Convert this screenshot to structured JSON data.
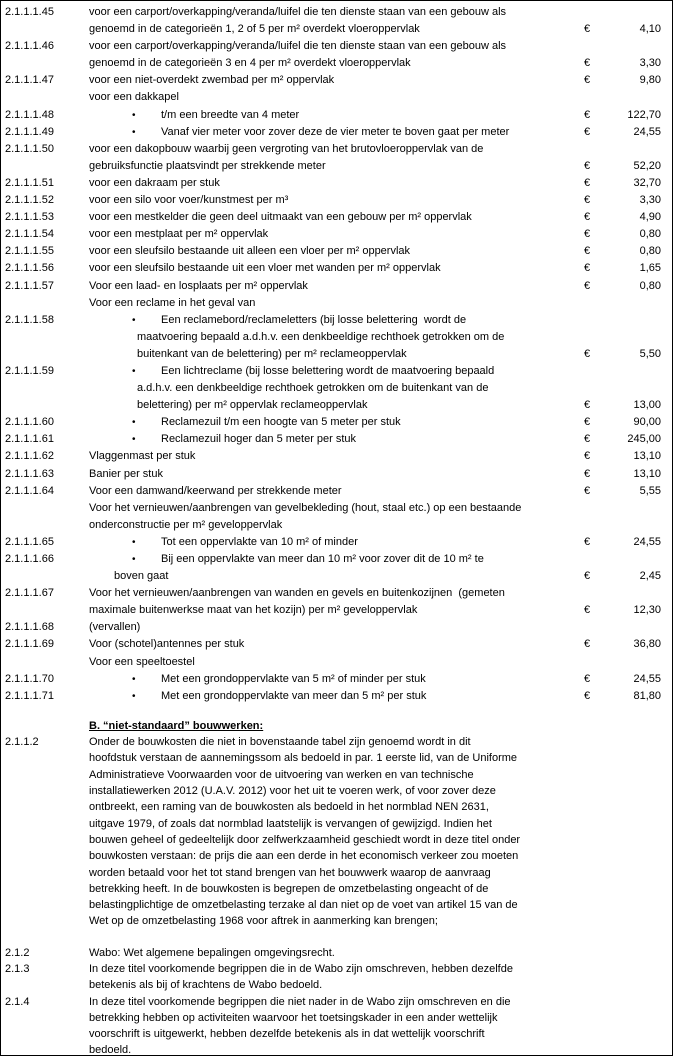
{
  "currency_symbol": "€",
  "heading_b": "B. “niet-standaard” bouwwerken:",
  "document": {
    "sections": [
      {
        "type": "rows",
        "id": "tariff-table",
        "rows": [
          {
            "code": "2.1.1.1.45",
            "amount": "4,10",
            "lines": [
              {
                "i": "d",
                "t": "voor een carport/overkapping/veranda/luifel die ten dienste staan van een gebouw als"
              },
              {
                "i": "d",
                "t": "genoemd in de categorieën 1, 2 of 5 per m² overdekt vloeroppervlak"
              }
            ]
          },
          {
            "code": "2.1.1.1.46",
            "amount": "3,30",
            "lines": [
              {
                "i": "d",
                "t": "voor een carport/overkapping/veranda/luifel die ten dienste staan van een gebouw als"
              },
              {
                "i": "d",
                "t": "genoemd in de categorieën 3 en 4 per m² overdekt vloeroppervlak"
              }
            ]
          },
          {
            "code": "2.1.1.1.47",
            "amount": "9,80",
            "lines": [
              {
                "i": "d",
                "t": "voor een niet-overdekt zwembad per m² oppervlak"
              }
            ]
          },
          {
            "code": "",
            "amount": null,
            "lines": [
              {
                "i": "d",
                "t": "voor een dakkapel"
              }
            ]
          },
          {
            "code": "2.1.1.1.48",
            "amount": "122,70",
            "lines": [
              {
                "i": "b",
                "t": "t/m een breedte van 4 meter"
              }
            ]
          },
          {
            "code": "2.1.1.1.49",
            "amount": "24,55",
            "lines": [
              {
                "i": "b",
                "t": "Vanaf vier meter voor zover deze de vier meter te boven gaat per meter"
              }
            ]
          },
          {
            "code": "2.1.1.1.50",
            "amount": "52,20",
            "lines": [
              {
                "i": "d",
                "t": "voor een dakopbouw waarbij geen vergroting van het brutovloeroppervlak van de"
              },
              {
                "i": "d",
                "t": "gebruiksfunctie plaatsvindt per strekkende meter"
              }
            ]
          },
          {
            "code": "2.1.1.1.51",
            "amount": "32,70",
            "lines": [
              {
                "i": "d",
                "t": "voor een dakraam per stuk"
              }
            ]
          },
          {
            "code": "2.1.1.1.52",
            "amount": "3,30",
            "lines": [
              {
                "i": "d",
                "t": "voor een silo voor voer/kunstmest per m³"
              }
            ]
          },
          {
            "code": "2.1.1.1.53",
            "amount": "4,90",
            "lines": [
              {
                "i": "d",
                "t": "voor een mestkelder die geen deel uitmaakt van een gebouw per m² oppervlak"
              }
            ]
          },
          {
            "code": "2.1.1.1.54",
            "amount": "0,80",
            "lines": [
              {
                "i": "d",
                "t": "voor een mestplaat per m² oppervlak"
              }
            ]
          },
          {
            "code": "2.1.1.1.55",
            "amount": "0,80",
            "lines": [
              {
                "i": "d",
                "t": "voor een sleufsilo bestaande uit alleen een vloer per m² oppervlak"
              }
            ]
          },
          {
            "code": "2.1.1.1.56",
            "amount": "1,65",
            "lines": [
              {
                "i": "d",
                "t": "voor een sleufsilo bestaande uit een vloer met wanden per m² oppervlak"
              }
            ]
          },
          {
            "code": "2.1.1.1.57",
            "amount": "0,80",
            "lines": [
              {
                "i": "d",
                "t": "Voor een laad- en losplaats per m² oppervlak"
              }
            ]
          },
          {
            "code": "",
            "amount": null,
            "lines": [
              {
                "i": "d",
                "t": "Voor een reclame in het geval van"
              }
            ]
          },
          {
            "code": "2.1.1.1.58",
            "amount": "5,50",
            "lines": [
              {
                "i": "b",
                "t": "Een reclamebord/reclameletters (bij losse belettering  wordt de"
              },
              {
                "i": "c",
                "t": "maatvoering bepaald a.d.h.v. een denkbeeldige rechthoek getrokken om de"
              },
              {
                "i": "c",
                "t": "buitenkant van de belettering) per m² reclameoppervlak"
              }
            ]
          },
          {
            "code": "2.1.1.1.59",
            "amount": "13,00",
            "lines": [
              {
                "i": "b",
                "t": "Een lichtreclame (bij losse belettering wordt de maatvoering bepaald"
              },
              {
                "i": "c",
                "t": "a.d.h.v. een denkbeeldige rechthoek getrokken om de buitenkant van de"
              },
              {
                "i": "c",
                "t": "belettering) per m² oppervlak reclameoppervlak"
              }
            ]
          },
          {
            "code": "2.1.1.1.60",
            "amount": "90,00",
            "lines": [
              {
                "i": "b",
                "t": "Reclamezuil t/m een hoogte van 5 meter per stuk"
              }
            ]
          },
          {
            "code": "2.1.1.1.61",
            "amount": "245,00",
            "lines": [
              {
                "i": "b",
                "t": "Reclamezuil hoger dan 5 meter per stuk"
              }
            ]
          },
          {
            "code": "2.1.1.1.62",
            "amount": "13,10",
            "lines": [
              {
                "i": "d",
                "t": "Vlaggenmast per stuk"
              }
            ]
          },
          {
            "code": "2.1.1.1.63",
            "amount": "13,10",
            "lines": [
              {
                "i": "d",
                "t": "Banier per stuk"
              }
            ]
          },
          {
            "code": "2.1.1.1.64",
            "amount": "5,55",
            "lines": [
              {
                "i": "d",
                "t": "Voor een damwand/keerwand per strekkende meter"
              }
            ]
          },
          {
            "code": "",
            "amount": null,
            "lines": [
              {
                "i": "d",
                "t": "Voor het vernieuwen/aanbrengen van gevelbekleding (hout, staal etc.) op een bestaande"
              },
              {
                "i": "d",
                "t": "onderconstructie per m² geveloppervlak"
              }
            ]
          },
          {
            "code": "2.1.1.1.65",
            "amount": "24,55",
            "lines": [
              {
                "i": "b",
                "t": "Tot een oppervlakte van 10 m² of minder"
              }
            ]
          },
          {
            "code": "2.1.1.1.66",
            "amount": "2,45",
            "lines": [
              {
                "i": "b",
                "t": "Bij een oppervlakte van meer dan 10 m² voor zover dit de 10 m² te"
              },
              {
                "i": "w",
                "t": "boven gaat"
              }
            ]
          },
          {
            "code": "2.1.1.1.67",
            "amount": "12,30",
            "lines": [
              {
                "i": "d",
                "t": "Voor het vernieuwen/aanbrengen van wanden en gevels en buitenkozijnen  (gemeten"
              },
              {
                "i": "d",
                "t": "maximale buitenwerkse maat van het kozijn) per m² geveloppervlak"
              }
            ]
          },
          {
            "code": "2.1.1.1.68",
            "amount": null,
            "lines": [
              {
                "i": "d",
                "t": "(vervallen)"
              }
            ]
          },
          {
            "code": "2.1.1.1.69",
            "amount": "36,80",
            "lines": [
              {
                "i": "d",
                "t": "Voor (schotel)antennes per stuk"
              }
            ]
          },
          {
            "code": "",
            "amount": null,
            "lines": [
              {
                "i": "d",
                "t": "Voor een speeltoestel"
              }
            ]
          },
          {
            "code": "2.1.1.1.70",
            "amount": "24,55",
            "lines": [
              {
                "i": "b",
                "t": "Met een grondoppervlakte van 5 m² of minder per stuk"
              }
            ]
          },
          {
            "code": "2.1.1.1.71",
            "amount": "81,80",
            "lines": [
              {
                "i": "b",
                "t": "Met een grondoppervlakte van meer dan 5 m² per stuk"
              }
            ]
          }
        ]
      },
      {
        "type": "spacer",
        "h": 13
      },
      {
        "type": "heading",
        "text": "B. “niet-standaard” bouwwerken:"
      },
      {
        "type": "rows",
        "id": "lower",
        "rows": [
          {
            "code": "2.1.1.2",
            "amount": null,
            "lines": [
              {
                "i": "d",
                "t": "Onder de bouwkosten die niet in bovenstaande tabel zijn genoemd wordt in dit"
              },
              {
                "i": "d",
                "t": "hoofdstuk verstaan de aannemingssom als bedoeld in par. 1 eerste lid, van de Uniforme"
              },
              {
                "i": "d",
                "t": "Administratieve Voorwaarden voor de uitvoering van werken en van technische"
              },
              {
                "i": "d",
                "t": "installatiewerken 2012 (U.A.V. 2012) voor het uit te voeren werk, of voor zover deze"
              },
              {
                "i": "d",
                "t": "ontbreekt, een raming van de bouwkosten als bedoeld in het normblad NEN 2631,"
              },
              {
                "i": "d",
                "t": "uitgave 1979, of zoals dat normblad laatstelijk is vervangen of gewijzigd. Indien het"
              },
              {
                "i": "d",
                "t": "bouwen geheel of gedeeltelijk door zelfwerkzaamheid geschiedt wordt in deze titel onder"
              },
              {
                "i": "d",
                "t": "bouwkosten verstaan: de prijs die aan een derde in het economisch verkeer zou moeten"
              },
              {
                "i": "d",
                "t": "worden betaald voor het tot stand brengen van het bouwwerk waarop de aanvraag"
              },
              {
                "i": "d",
                "t": "betrekking heeft. In de bouwkosten is begrepen de omzetbelasting ongeacht of de"
              },
              {
                "i": "d",
                "t": "belastingplichtige de omzetbelasting terzake al dan niet op de voet van artikel 15 van de"
              },
              {
                "i": "d",
                "t": "Wet op de omzetbelasting 1968 voor aftrek in aanmerking kan brengen;"
              }
            ]
          }
        ]
      },
      {
        "type": "spacer",
        "h": 15
      },
      {
        "type": "rows",
        "id": "definitions",
        "rows": [
          {
            "code": "2.1.2",
            "amount": null,
            "lines": [
              {
                "i": "d",
                "t": "Wabo: Wet algemene bepalingen omgevingsrecht."
              }
            ]
          },
          {
            "code": "2.1.3",
            "amount": null,
            "lines": [
              {
                "i": "d",
                "t": "In deze titel voorkomende begrippen die in de Wabo zijn omschreven, hebben dezelfde"
              },
              {
                "i": "d",
                "t": "betekenis als bij of krachtens de Wabo bedoeld."
              }
            ]
          },
          {
            "code": "2.1.4",
            "amount": null,
            "lines": [
              {
                "i": "d",
                "t": "In deze titel voorkomende begrippen die niet nader in de Wabo zijn omschreven en die"
              },
              {
                "i": "d",
                "t": "betrekking hebben op activiteiten waarvoor het toetsingskader in een ander wettelijk"
              },
              {
                "i": "d",
                "t": "voorschrift is uitgewerkt, hebben dezelfde betekenis als in dat wettelijk voorschrift"
              },
              {
                "i": "d",
                "t": "bedoeld."
              }
            ]
          }
        ]
      }
    ]
  }
}
